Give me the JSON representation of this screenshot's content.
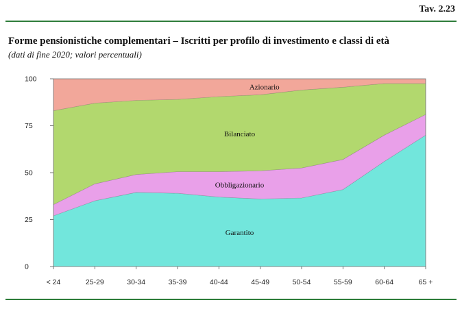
{
  "header": {
    "table_number": "Tav. 2.23",
    "title": "Forme pensionistiche complementari – Iscritti per profilo di investimento e classi di età",
    "subtitle": "(dati di fine 2020; valori percentuali)"
  },
  "chart_data": {
    "type": "area",
    "stacked": true,
    "categories": [
      "< 24",
      "25-29",
      "30-34",
      "35-39",
      "40-44",
      "45-49",
      "50-54",
      "55-59",
      "60-64",
      "65 +"
    ],
    "ylim": [
      0,
      100
    ],
    "yticks": [
      "0",
      "25",
      "50",
      "75",
      "100"
    ],
    "series": [
      {
        "name": "Garantito",
        "color": "#72e6dc",
        "values": [
          27,
          35,
          39.5,
          39,
          37,
          36,
          36.5,
          41,
          56,
          70
        ]
      },
      {
        "name": "Obbligazionario",
        "color": "#e9a0e9",
        "values": [
          6,
          9,
          9.5,
          11.5,
          13.5,
          15,
          16,
          16,
          14,
          11
        ]
      },
      {
        "name": "Bilanciato",
        "color": "#b2d86e",
        "values": [
          50,
          43,
          39.5,
          38.5,
          40,
          40.5,
          41.5,
          38.5,
          27.5,
          16.5
        ]
      },
      {
        "name": "Azionario",
        "color": "#f2a79a",
        "values": [
          17,
          13,
          11.5,
          11,
          9.5,
          8.5,
          6,
          4.5,
          2.5,
          2.5
        ]
      }
    ]
  }
}
